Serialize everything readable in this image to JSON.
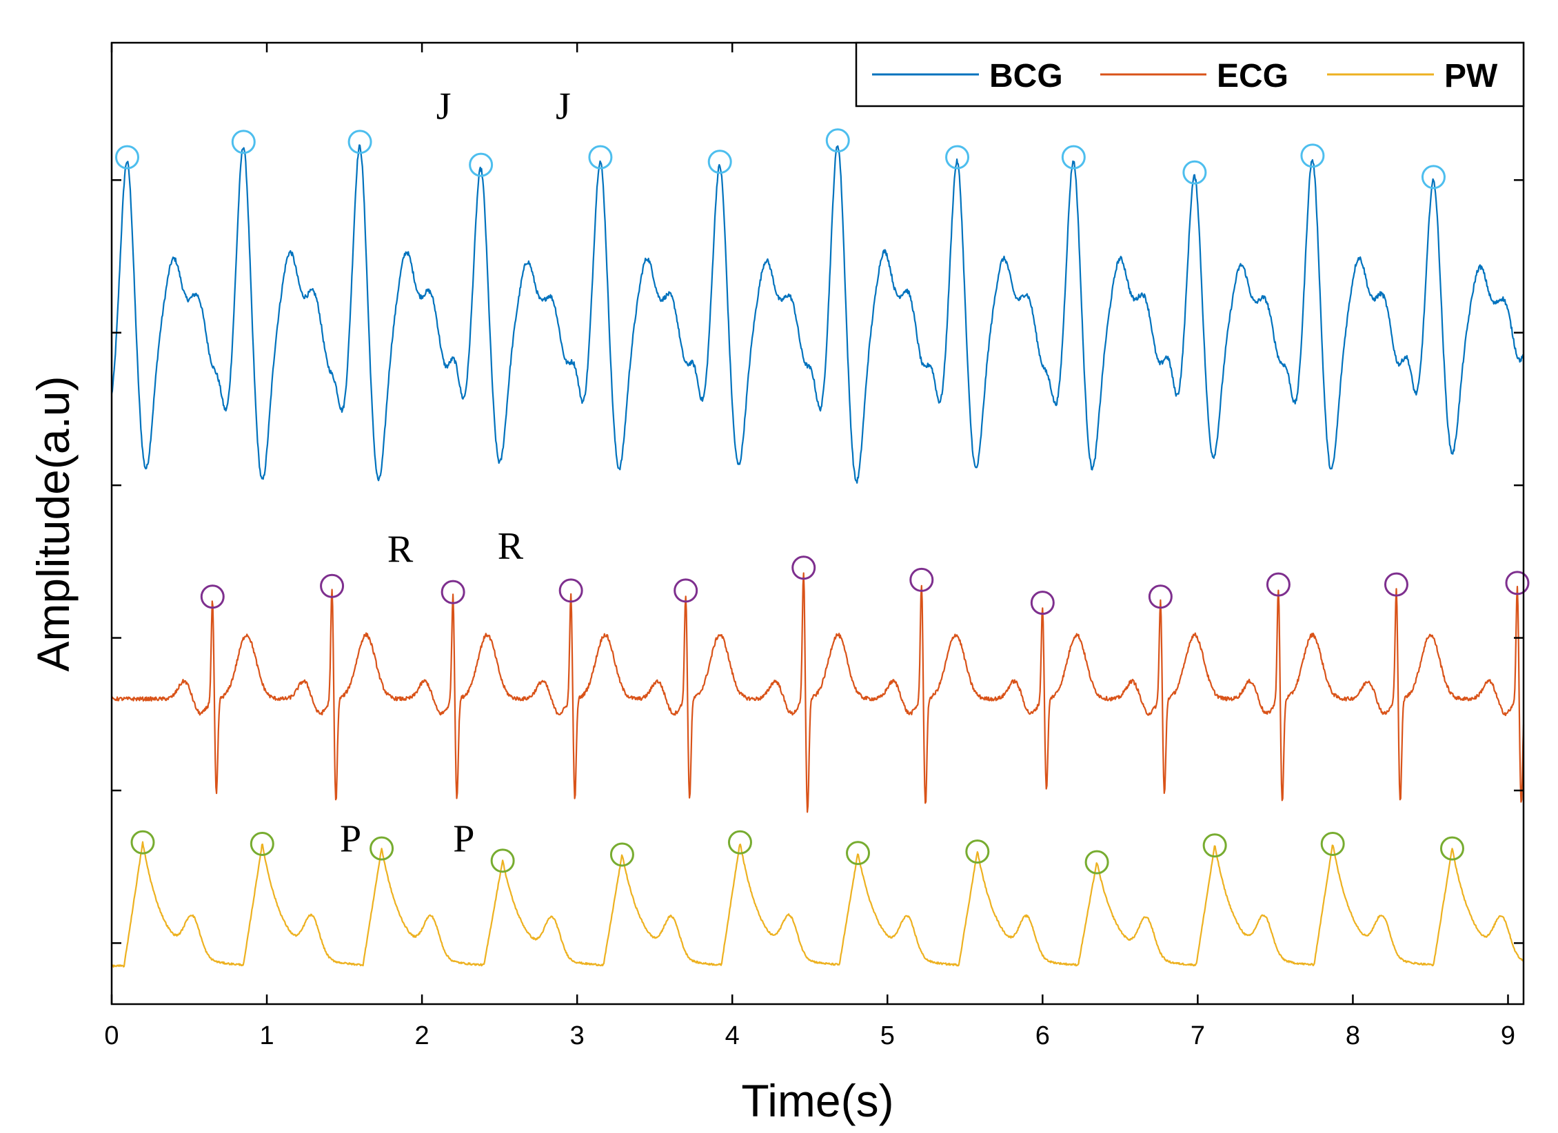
{
  "chart_data": {
    "type": "line",
    "title": "",
    "xlabel": "Time(s)",
    "ylabel": "Amplitude(a.u)",
    "xlim": [
      0,
      9.1
    ],
    "ylim": [
      0,
      6.3
    ],
    "x_ticks": [
      0,
      1,
      2,
      3,
      4,
      5,
      6,
      7,
      8,
      9
    ],
    "x_tick_labels": [
      "0",
      "1",
      "2",
      "3",
      "4",
      "5",
      "6",
      "7",
      "8",
      "9"
    ],
    "y_ticks": [
      0.4,
      1.4,
      2.4,
      3.4,
      4.4,
      5.4
    ],
    "y_tick_labels_visible": false,
    "grid": false,
    "legend_position": "top-right",
    "series": [
      {
        "name": "BCG",
        "color": "#0072BD",
        "baseline": 4.4,
        "peak_times": [
          0.1,
          0.85,
          1.6,
          2.38,
          3.15,
          3.92,
          4.68,
          5.45,
          6.2,
          6.98,
          7.74,
          8.52
        ],
        "peak_values": [
          5.55,
          5.65,
          5.65,
          5.5,
          5.55,
          5.52,
          5.66,
          5.55,
          5.55,
          5.45,
          5.56,
          5.42
        ],
        "marker_color": "#4DBEEE"
      },
      {
        "name": "ECG",
        "color": "#D95319",
        "baseline": 2.0,
        "peak_times": [
          0.65,
          1.42,
          2.2,
          2.96,
          3.7,
          4.46,
          5.22,
          6.0,
          6.76,
          7.52,
          8.28,
          9.06
        ],
        "peak_values": [
          2.67,
          2.74,
          2.7,
          2.71,
          2.71,
          2.86,
          2.78,
          2.63,
          2.67,
          2.75,
          2.75,
          2.76
        ],
        "marker_color": "#7E2F8E"
      },
      {
        "name": "PW",
        "color": "#EDB120",
        "baseline": 0.25,
        "peak_times": [
          0.2,
          0.97,
          1.74,
          2.52,
          3.29,
          4.05,
          4.81,
          5.58,
          6.35,
          7.11,
          7.87,
          8.64
        ],
        "peak_values": [
          1.06,
          1.05,
          1.02,
          0.94,
          0.98,
          1.06,
          0.99,
          1.0,
          0.93,
          1.04,
          1.05,
          1.02
        ],
        "marker_color": "#77AC30"
      }
    ],
    "annotations": [
      {
        "text": "J",
        "x": 2.14,
        "y": 5.8
      },
      {
        "text": "J",
        "x": 2.91,
        "y": 5.8
      },
      {
        "text": "R",
        "x": 1.86,
        "y": 2.9
      },
      {
        "text": "R",
        "x": 2.57,
        "y": 2.92
      },
      {
        "text": "P",
        "x": 1.54,
        "y": 1.0
      },
      {
        "text": "P",
        "x": 2.27,
        "y": 1.0
      }
    ]
  }
}
